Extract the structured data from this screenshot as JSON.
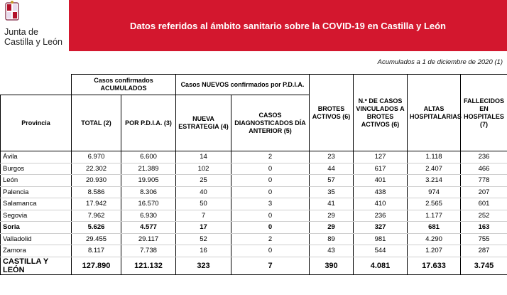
{
  "header": {
    "logo_line1": "Junta de",
    "logo_line2": "Castilla y León",
    "title": "Datos referidos al ámbito sanitario sobre la COVID-19 en Castilla y León"
  },
  "subtitle": "Acumulados a 1 de diciembre de 2020 (1)",
  "table": {
    "group_headers": [
      "Casos confirmados ACUMULADOS",
      "Casos NUEVOS confirmados por P.D.I.A."
    ],
    "columns": [
      "Provincia",
      "TOTAL (2)",
      "POR P.D.I.A. (3)",
      "NUEVA ESTRATEGIA (4)",
      "CASOS DIAGNOSTICADOS DÍA ANTERIOR (5)",
      "BROTES ACTIVOS (6)",
      "N.º DE CASOS VINCULADOS A BROTES ACTIVOS (6)",
      "ALTAS HOSPITALARIAS",
      "FALLECIDOS EN HOSPITALES (7)"
    ],
    "rows": [
      [
        "Ávila",
        "6.970",
        "6.600",
        "14",
        "2",
        "23",
        "127",
        "1.118",
        "236"
      ],
      [
        "Burgos",
        "22.302",
        "21.389",
        "102",
        "0",
        "44",
        "617",
        "2.407",
        "466"
      ],
      [
        "León",
        "20.930",
        "19.905",
        "25",
        "0",
        "57",
        "401",
        "3.214",
        "778"
      ],
      [
        "Palencia",
        "8.586",
        "8.306",
        "40",
        "0",
        "35",
        "438",
        "974",
        "207"
      ],
      [
        "Salamanca",
        "17.942",
        "16.570",
        "50",
        "3",
        "41",
        "410",
        "2.565",
        "601"
      ],
      [
        "Segovia",
        "7.962",
        "6.930",
        "7",
        "0",
        "29",
        "236",
        "1.177",
        "252"
      ],
      [
        "Soria",
        "5.626",
        "4.577",
        "17",
        "0",
        "29",
        "327",
        "681",
        "163"
      ],
      [
        "Valladolid",
        "29.455",
        "29.117",
        "52",
        "2",
        "89",
        "981",
        "4.290",
        "755"
      ],
      [
        "Zamora",
        "8.117",
        "7.738",
        "16",
        "0",
        "43",
        "544",
        "1.207",
        "287"
      ]
    ],
    "total": [
      "CASTILLA Y LEÓN",
      "127.890",
      "121.132",
      "323",
      "7",
      "390",
      "4.081",
      "17.633",
      "3.745"
    ]
  }
}
